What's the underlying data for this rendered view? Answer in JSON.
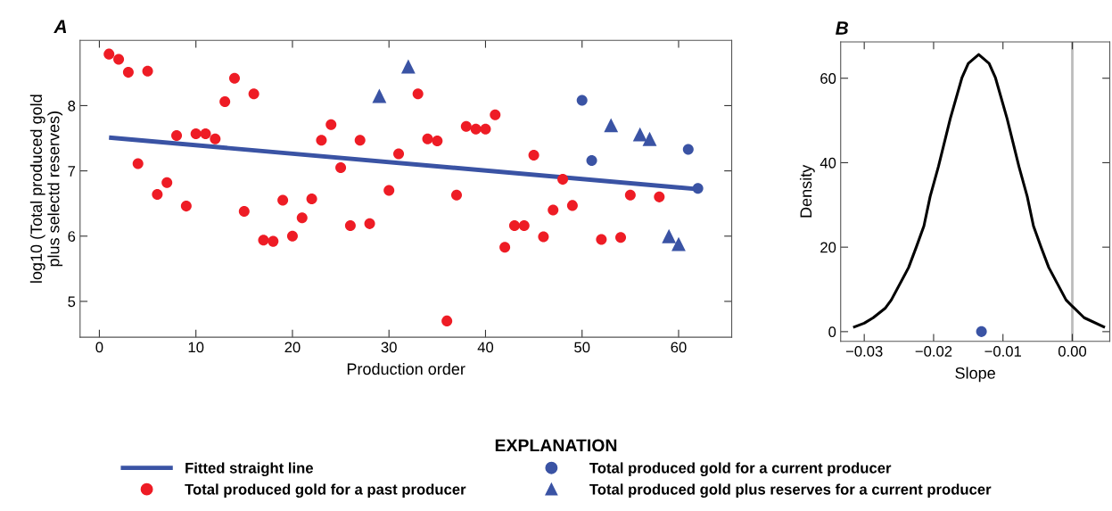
{
  "chart_data": [
    {
      "type": "scatter",
      "title": "A",
      "xlabel": "Production order",
      "ylabel": "log10 (Total produced gold\nplus selectd reserves)",
      "xlim": [
        -2,
        65.5
      ],
      "ylim": [
        4.45,
        9.0
      ],
      "xticks": [
        0,
        10,
        20,
        30,
        40,
        50,
        60
      ],
      "yticks": [
        5,
        6,
        7,
        8
      ],
      "legend": "bottom",
      "legend_title": "EXPLANATION",
      "series": [
        {
          "name": "Fitted straight line",
          "type": "line",
          "color": "#3a53a4",
          "x": [
            1,
            62
          ],
          "values": [
            7.51,
            6.72
          ]
        },
        {
          "name": "Total produced gold for a past producer",
          "marker": "circle",
          "color": "#ee1c25",
          "x": [
            1,
            2,
            3,
            4,
            5,
            6,
            7,
            8,
            9,
            10,
            11,
            12,
            13,
            14,
            15,
            16,
            17,
            18,
            19,
            20,
            21,
            22,
            23,
            24,
            25,
            26,
            27,
            28,
            30,
            31,
            33,
            34,
            35,
            36,
            37,
            38,
            39,
            40,
            41,
            42,
            43,
            44,
            45,
            46,
            47,
            48,
            49,
            52,
            54,
            55,
            58
          ],
          "values": [
            8.79,
            8.71,
            8.51,
            7.11,
            8.53,
            6.64,
            6.82,
            7.54,
            6.46,
            7.57,
            7.57,
            7.49,
            8.06,
            8.42,
            6.38,
            8.18,
            5.94,
            5.92,
            6.55,
            6.0,
            6.28,
            6.57,
            7.47,
            7.71,
            7.05,
            6.16,
            7.47,
            6.19,
            6.7,
            7.26,
            8.18,
            7.49,
            7.46,
            4.7,
            6.63,
            7.68,
            7.64,
            7.64,
            7.86,
            5.83,
            6.16,
            6.16,
            7.24,
            5.99,
            6.4,
            6.87,
            6.47,
            5.95,
            5.98,
            6.63,
            6.6
          ]
        },
        {
          "name": "Total produced gold for a current producer",
          "marker": "circle",
          "color": "#3a53a4",
          "x": [
            50,
            51,
            61,
            62
          ],
          "values": [
            8.08,
            7.16,
            7.33,
            6.73
          ]
        },
        {
          "name": "Total produced gold plus reserves for a current producer",
          "marker": "triangle",
          "color": "#3a53a4",
          "x": [
            29,
            32,
            53,
            56,
            57,
            59,
            60
          ],
          "values": [
            8.15,
            8.6,
            7.7,
            7.56,
            7.49,
            6.0,
            5.88
          ]
        }
      ]
    },
    {
      "type": "line",
      "title": "B",
      "xlabel": "Slope",
      "ylabel": "Density",
      "xlim": [
        -0.0334,
        0.0054
      ],
      "ylim": [
        -2.3,
        68.6
      ],
      "xticks": [
        {
          "value": -0.03,
          "label": "−0.03"
        },
        {
          "value": -0.02,
          "label": "−0.02"
        },
        {
          "value": -0.01,
          "label": "−0.01"
        },
        {
          "value": 0.0,
          "label": "0.00"
        }
      ],
      "yticks": [
        0,
        20,
        40,
        60
      ],
      "ref_lines": [
        {
          "axis": "x",
          "value": 0.0,
          "color": "#bbbbbb"
        }
      ],
      "series": [
        {
          "color": "#000000",
          "x": [
            -0.0316,
            -0.03,
            -0.0287,
            -0.027,
            -0.0261,
            -0.0236,
            -0.0225,
            -0.0214,
            -0.0205,
            -0.0193,
            -0.0176,
            -0.0159,
            -0.015,
            -0.0135,
            -0.012,
            -0.0111,
            -0.0094,
            -0.0077,
            -0.0065,
            -0.0056,
            -0.0045,
            -0.0034,
            -0.0009,
            0.0,
            0.0017,
            0.0047
          ],
          "values": [
            1.0,
            2.0,
            3.3,
            5.5,
            7.5,
            15.2,
            20,
            25,
            32,
            39.1,
            50.4,
            60.2,
            63.5,
            65.6,
            63.5,
            60.2,
            50.4,
            39.1,
            32,
            25,
            20,
            15.2,
            7.5,
            6.0,
            3.3,
            1.0
          ]
        },
        {
          "type": "scatter",
          "marker": "circle",
          "color": "#3a53a4",
          "x": [
            -0.0131
          ],
          "values": [
            0
          ]
        }
      ]
    }
  ]
}
